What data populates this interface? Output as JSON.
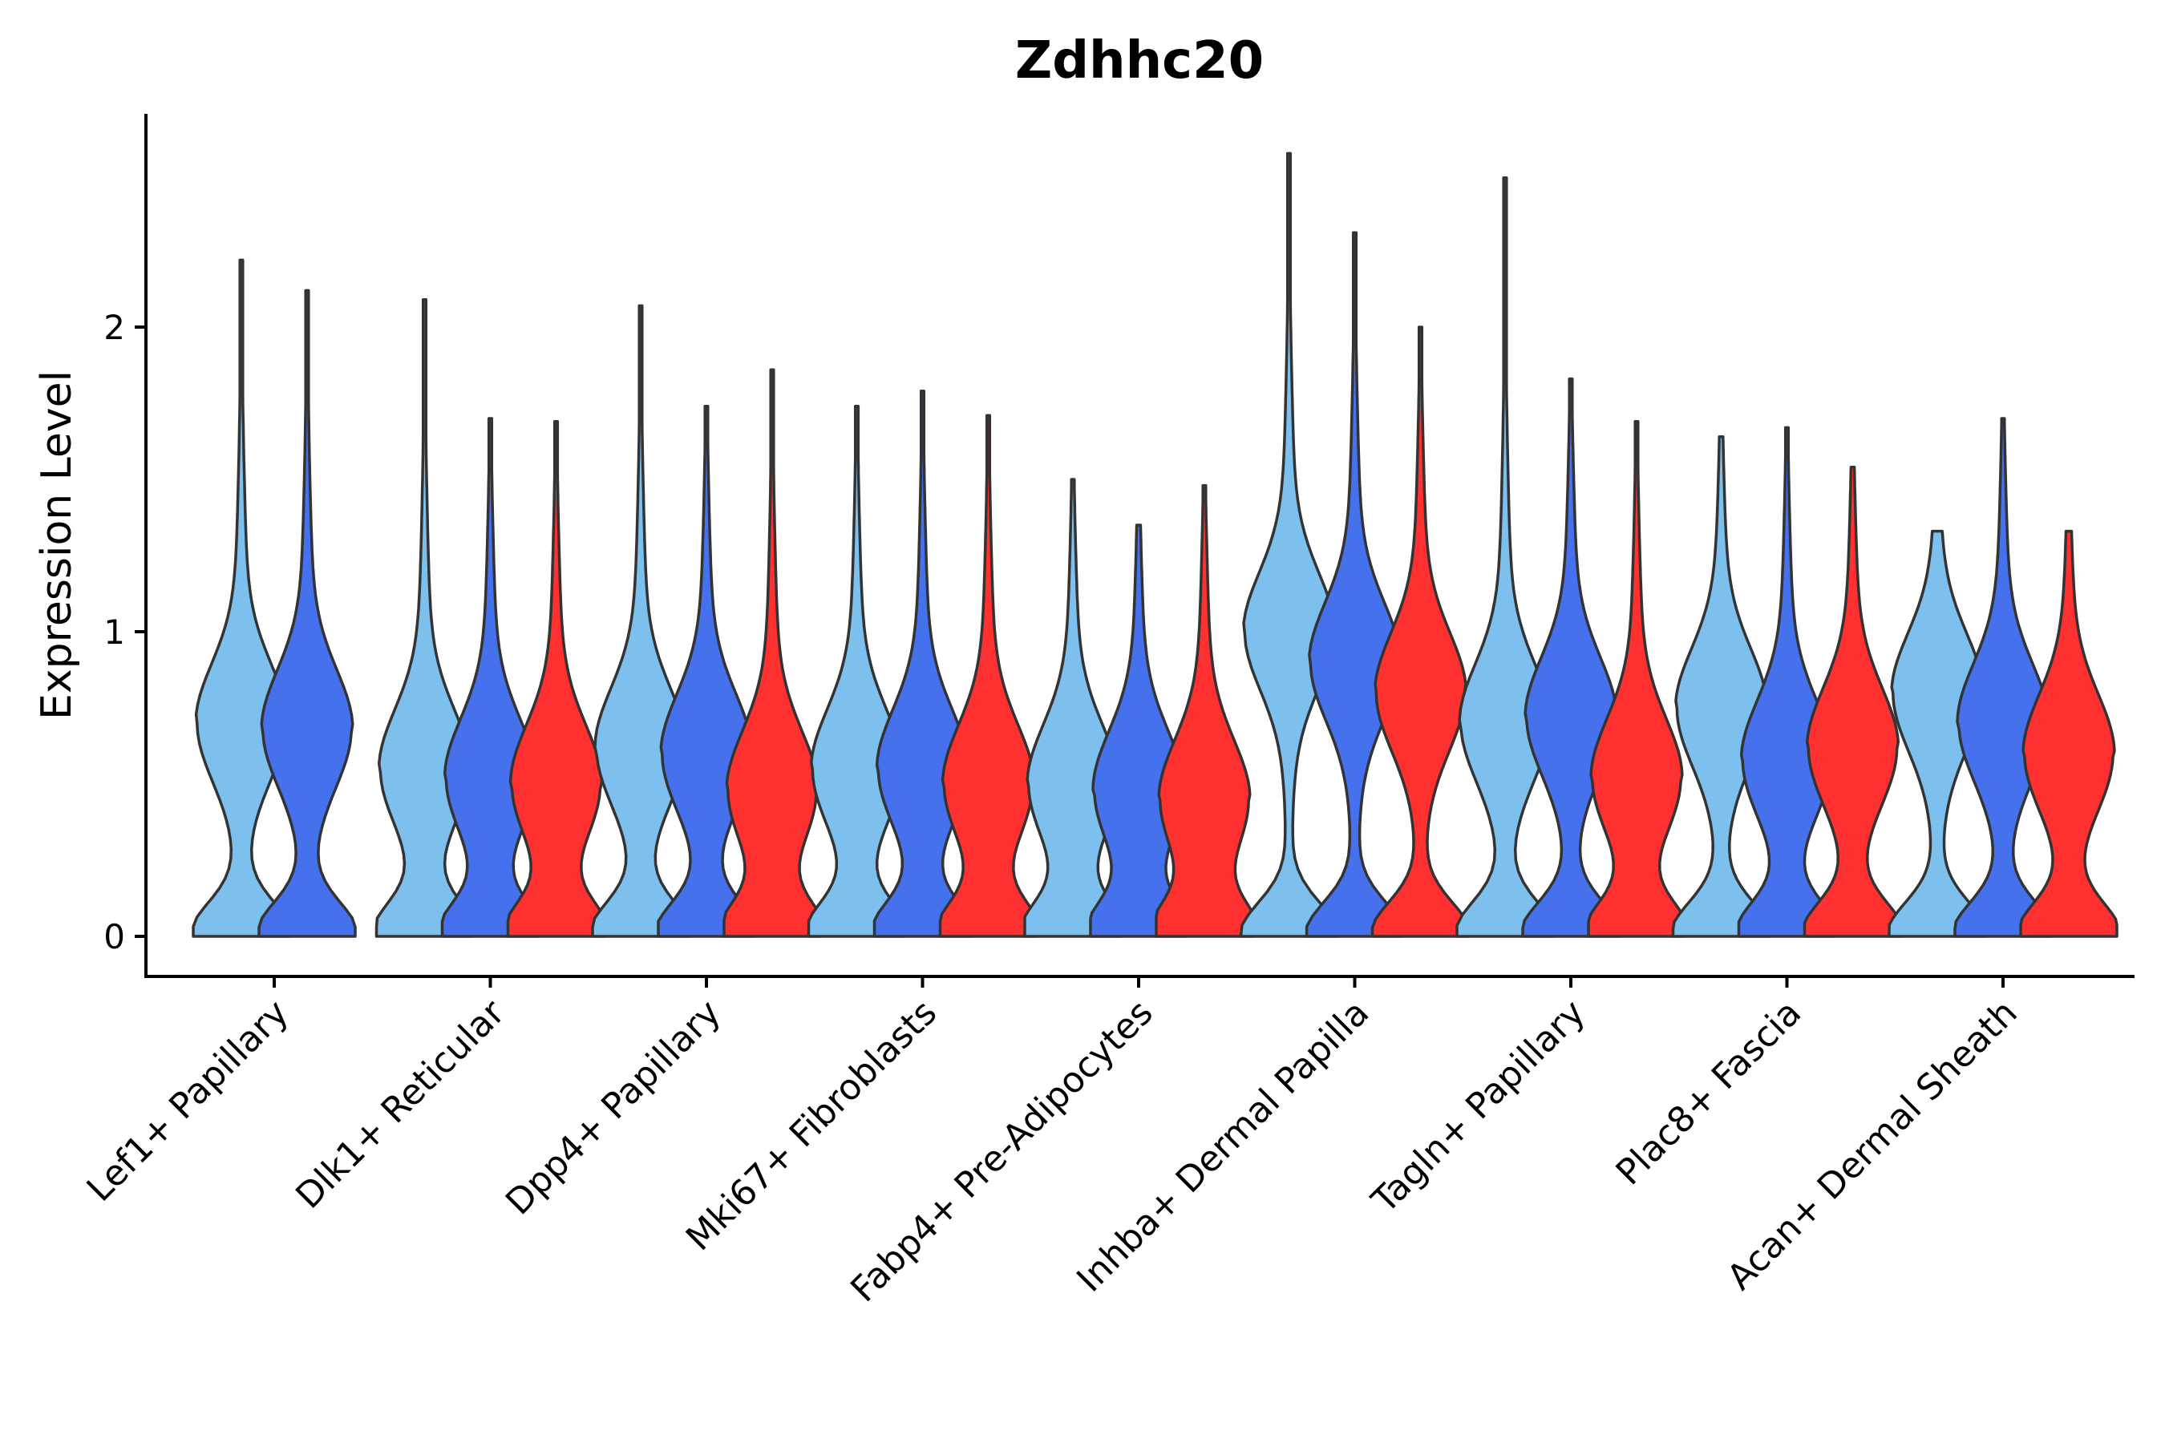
{
  "chart_data": {
    "type": "violin",
    "title": "Zdhhc20",
    "xlabel": "",
    "ylabel": "Expression Level",
    "ylim": [
      -0.13,
      2.75
    ],
    "yticks": [
      0,
      1,
      2
    ],
    "grid": false,
    "legend": "none",
    "series_colors": [
      "#7DC0ED",
      "#4671EC",
      "#FF3030"
    ],
    "categories": [
      {
        "name": "Lef1+ Papillary",
        "groups": [
          {
            "max": 2.22,
            "peak": 0.7,
            "color": "#7DC0ED"
          },
          {
            "max": 2.12,
            "peak": 0.68,
            "color": "#4671EC"
          }
        ]
      },
      {
        "name": "Dlk1+ Reticular",
        "groups": [
          {
            "max": 2.09,
            "peak": 0.55,
            "color": "#7DC0ED"
          },
          {
            "max": 1.7,
            "peak": 0.52,
            "color": "#4671EC"
          },
          {
            "max": 1.69,
            "peak": 0.5,
            "color": "#FF3030"
          }
        ]
      },
      {
        "name": "Dpp4+ Papillary",
        "groups": [
          {
            "max": 2.07,
            "peak": 0.62,
            "color": "#7DC0ED"
          },
          {
            "max": 1.74,
            "peak": 0.6,
            "color": "#4671EC"
          },
          {
            "max": 1.86,
            "peak": 0.48,
            "color": "#FF3030"
          }
        ]
      },
      {
        "name": "Mki67+ Fibroblasts",
        "groups": [
          {
            "max": 1.74,
            "peak": 0.55,
            "color": "#7DC0ED"
          },
          {
            "max": 1.79,
            "peak": 0.55,
            "color": "#4671EC"
          },
          {
            "max": 1.71,
            "peak": 0.5,
            "color": "#FF3030"
          }
        ]
      },
      {
        "name": "Fabp4+ Pre-Adipocytes",
        "groups": [
          {
            "max": 1.5,
            "peak": 0.5,
            "color": "#7DC0ED"
          },
          {
            "max": 1.35,
            "peak": 0.48,
            "color": "#4671EC"
          },
          {
            "max": 1.48,
            "peak": 0.45,
            "color": "#FF3030"
          }
        ]
      },
      {
        "name": "Inhba+ Dermal Papilla",
        "groups": [
          {
            "max": 2.57,
            "peak": 1.0,
            "color": "#7DC0ED"
          },
          {
            "max": 2.31,
            "peak": 0.9,
            "color": "#4671EC"
          },
          {
            "max": 2.0,
            "peak": 0.8,
            "color": "#FF3030"
          }
        ]
      },
      {
        "name": "Tagln+ Papillary",
        "groups": [
          {
            "max": 2.49,
            "peak": 0.7,
            "color": "#7DC0ED"
          },
          {
            "max": 1.83,
            "peak": 0.72,
            "color": "#4671EC"
          },
          {
            "max": 1.69,
            "peak": 0.52,
            "color": "#FF3030"
          }
        ]
      },
      {
        "name": "Plac8+ Fascia",
        "groups": [
          {
            "max": 1.64,
            "peak": 0.75,
            "color": "#7DC0ED"
          },
          {
            "max": 1.67,
            "peak": 0.58,
            "color": "#4671EC"
          },
          {
            "max": 1.54,
            "peak": 0.62,
            "color": "#FF3030"
          }
        ]
      },
      {
        "name": "Acan+ Dermal Sheath",
        "groups": [
          {
            "max": 1.33,
            "peak": 0.8,
            "color": "#7DC0ED"
          },
          {
            "max": 1.7,
            "peak": 0.7,
            "color": "#4671EC"
          },
          {
            "max": 1.33,
            "peak": 0.6,
            "color": "#FF3030"
          }
        ]
      }
    ]
  }
}
